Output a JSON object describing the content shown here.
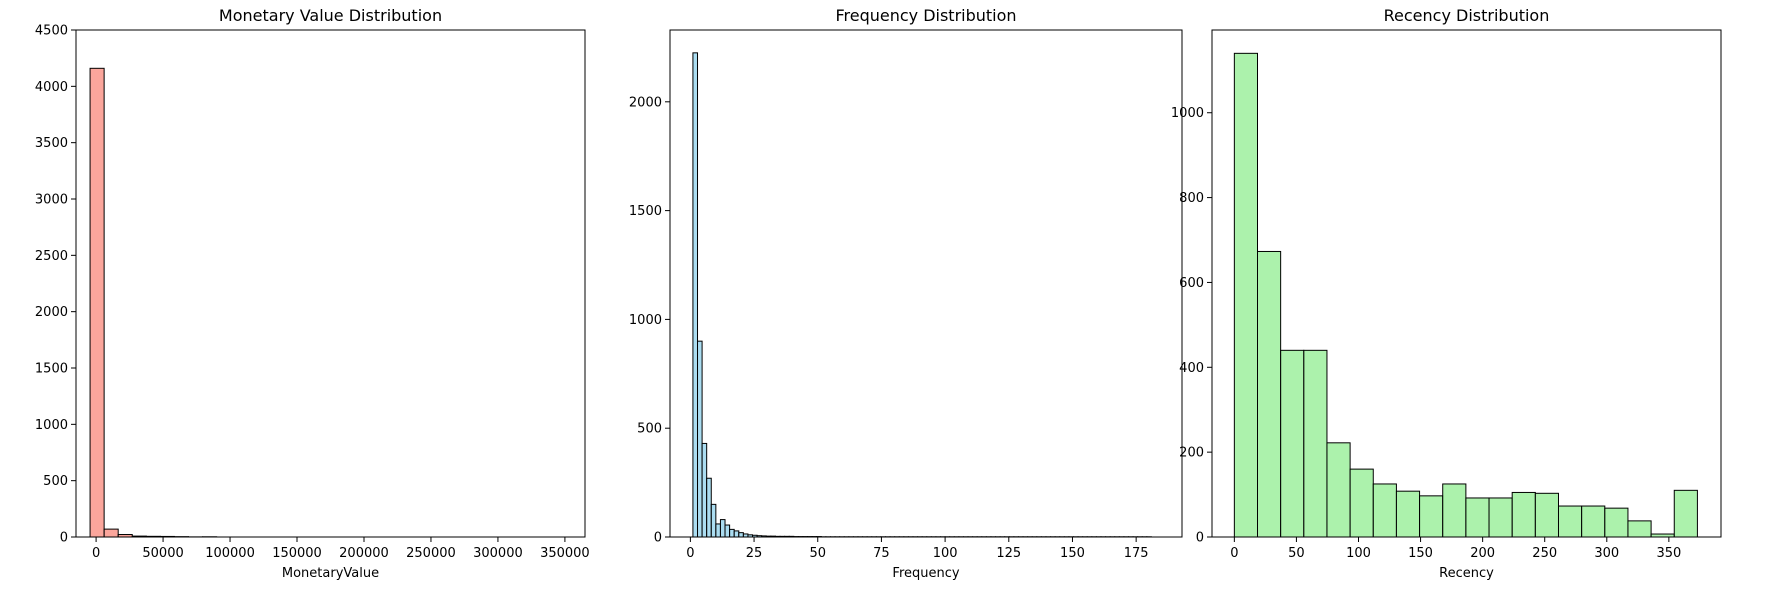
{
  "chart_data": [
    {
      "type": "histogram",
      "title": "Monetary Value Distribution",
      "xlabel": "MonetaryValue",
      "ylabel": "",
      "xlim": [
        -15000,
        365000
      ],
      "ylim": [
        0,
        4500
      ],
      "xticks": [
        0,
        50000,
        100000,
        150000,
        200000,
        250000,
        300000,
        350000
      ],
      "yticks": [
        0,
        500,
        1000,
        1500,
        2000,
        2500,
        3000,
        3500,
        4000,
        4500
      ],
      "bin_start": -4500,
      "bin_width": 10500,
      "counts": [
        4160,
        70,
        22,
        8,
        6,
        5,
        3,
        1,
        2,
        0,
        0,
        0,
        0,
        0,
        0,
        0,
        0,
        0,
        0,
        0,
        0,
        0,
        0,
        0,
        0,
        0,
        0,
        0,
        0,
        0,
        0,
        0,
        0,
        0
      ],
      "fill_color": "#fa8072",
      "fill_opacity": 0.7,
      "edge_color": "#000000",
      "grid": false
    },
    {
      "type": "histogram",
      "title": "Frequency Distribution",
      "xlabel": "Frequency",
      "ylabel": "",
      "xlim": [
        -8,
        193
      ],
      "ylim": [
        0,
        2330
      ],
      "xticks": [
        0,
        25,
        50,
        75,
        100,
        125,
        150,
        175
      ],
      "yticks": [
        0,
        500,
        1000,
        1500,
        2000
      ],
      "bin_start": 1,
      "bin_width": 1.8,
      "counts": [
        2225,
        900,
        430,
        270,
        150,
        60,
        80,
        55,
        35,
        28,
        20,
        14,
        10,
        8,
        6,
        5,
        4,
        4,
        3,
        3,
        3,
        3,
        2,
        2,
        2,
        2,
        2,
        2,
        1,
        1,
        1,
        1,
        1,
        1,
        1,
        1,
        1,
        1,
        1,
        1,
        1,
        1,
        1,
        1,
        1,
        1,
        1,
        1,
        1,
        1,
        1,
        1,
        1,
        1,
        1,
        1,
        1,
        1,
        1,
        1,
        1,
        1,
        1,
        1,
        1,
        1,
        1,
        1,
        1,
        1,
        1,
        1,
        1,
        1,
        1,
        1,
        1,
        1,
        1,
        1,
        1,
        1,
        1,
        1,
        1,
        1,
        1,
        1,
        1,
        1,
        1,
        1,
        1,
        1,
        1,
        1,
        1,
        1,
        1,
        1
      ],
      "fill_color": "#87ceeb",
      "fill_opacity": 0.7,
      "edge_color": "#000000",
      "grid": false
    },
    {
      "type": "histogram",
      "title": "Recency Distribution",
      "xlabel": "Recency",
      "ylabel": "",
      "xlim": [
        -18,
        392
      ],
      "ylim": [
        0,
        1195
      ],
      "xticks": [
        0,
        50,
        100,
        150,
        200,
        250,
        300,
        350
      ],
      "yticks": [
        0,
        200,
        400,
        600,
        800,
        1000
      ],
      "bin_start": 0,
      "bin_width": 18.65,
      "counts": [
        1140,
        673,
        440,
        440,
        222,
        160,
        125,
        108,
        97,
        125,
        92,
        92,
        105,
        103,
        73,
        73,
        68,
        38,
        7,
        110
      ],
      "fill_color": "#90ee90",
      "fill_opacity": 0.75,
      "edge_color": "#000000",
      "grid": false
    }
  ]
}
